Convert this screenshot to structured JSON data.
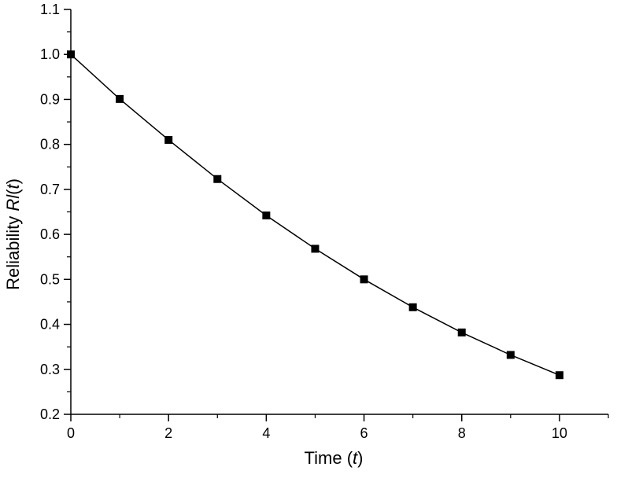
{
  "chart_data": {
    "type": "line",
    "title": "",
    "xlabel_main": "Time (",
    "xlabel_var": "t",
    "xlabel_end": ")",
    "ylabel_main": "Reliability ",
    "ylabel_var": "Rl",
    "ylabel_paren_open": "(",
    "ylabel_var2": "t",
    "ylabel_paren_close": ")",
    "xlim": [
      0,
      11
    ],
    "ylim": [
      0.2,
      1.1
    ],
    "x_ticks": [
      0,
      2,
      4,
      6,
      8,
      10
    ],
    "x_tick_labels": [
      "0",
      "2",
      "4",
      "6",
      "8",
      "10"
    ],
    "y_ticks": [
      0.2,
      0.3,
      0.4,
      0.5,
      0.6,
      0.7,
      0.8,
      0.9,
      1.0,
      1.1
    ],
    "y_tick_labels": [
      "0.2",
      "0.3",
      "0.4",
      "0.5",
      "0.6",
      "0.7",
      "0.8",
      "0.9",
      "1.0",
      "1.1"
    ],
    "grid": false,
    "series": [
      {
        "marker": "square",
        "color": "#000000",
        "x": [
          0,
          1,
          2,
          3,
          4,
          5,
          6,
          7,
          8,
          9,
          10
        ],
        "y": [
          1.0,
          0.901,
          0.81,
          0.723,
          0.642,
          0.568,
          0.5,
          0.438,
          0.382,
          0.332,
          0.287
        ]
      }
    ]
  }
}
